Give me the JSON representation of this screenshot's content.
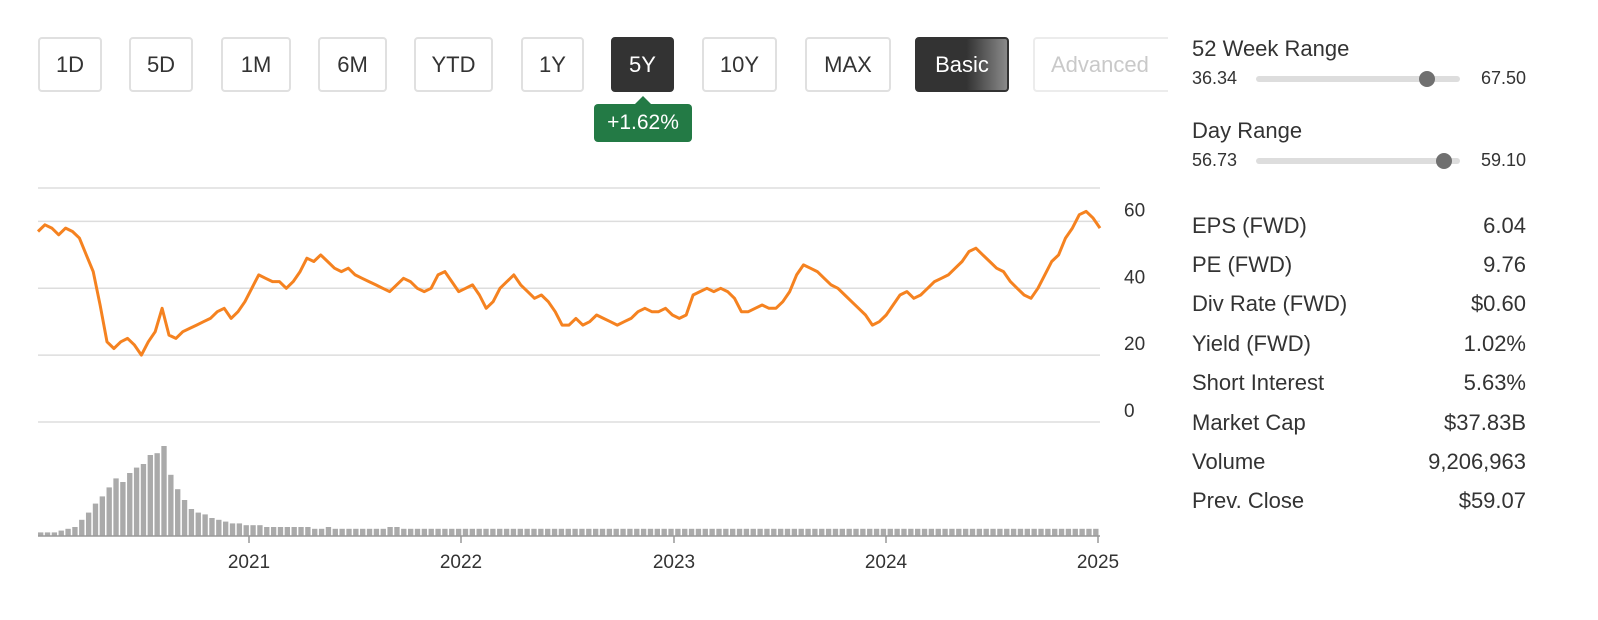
{
  "periods": [
    {
      "label": "1D",
      "active": false
    },
    {
      "label": "5D",
      "active": false
    },
    {
      "label": "1M",
      "active": false
    },
    {
      "label": "6M",
      "active": false
    },
    {
      "label": "YTD",
      "active": false
    },
    {
      "label": "1Y",
      "active": false
    },
    {
      "label": "5Y",
      "active": true
    },
    {
      "label": "10Y",
      "active": false
    },
    {
      "label": "MAX",
      "active": false
    }
  ],
  "mode": {
    "basic_label": "Basic",
    "advanced_label": "Advanced"
  },
  "change_badge": "+1.62%",
  "colors": {
    "price_line": "#f58220",
    "volume": "#aaaaaa",
    "gain_badge": "#237a45",
    "grid": "#dddddd"
  },
  "chart_data": {
    "type": "line",
    "x_tick_labels": [
      "2021",
      "2022",
      "2023",
      "2024",
      "2025"
    ],
    "y_tick_labels": [
      "60",
      "40",
      "20",
      "0"
    ],
    "ylim": [
      0,
      70
    ],
    "grid": true,
    "series": [
      {
        "values": [
          57,
          59,
          58,
          56,
          58,
          57,
          55,
          50,
          45,
          35,
          24,
          22,
          24,
          25,
          23,
          20,
          24,
          27,
          34,
          26,
          25,
          27,
          28,
          29,
          30,
          31,
          33,
          34,
          31,
          33,
          36,
          40,
          44,
          43,
          42,
          42,
          40,
          42,
          45,
          49,
          48,
          50,
          48,
          46,
          45,
          46,
          44,
          43,
          42,
          41,
          40,
          39,
          41,
          43,
          42,
          40,
          39,
          40,
          44,
          45,
          42,
          39,
          40,
          41,
          38,
          34,
          36,
          40,
          42,
          44,
          41,
          39,
          37,
          38,
          36,
          33,
          29,
          29,
          31,
          29,
          30,
          32,
          31,
          30,
          29,
          30,
          31,
          33,
          34,
          33,
          33,
          34,
          32,
          31,
          32,
          38,
          39,
          40,
          39,
          40,
          39,
          37,
          33,
          33,
          34,
          35,
          34,
          34,
          36,
          39,
          44,
          47,
          46,
          45,
          43,
          41,
          40,
          38,
          36,
          34,
          32,
          29,
          30,
          32,
          35,
          38,
          39,
          37,
          38,
          40,
          42,
          43,
          44,
          46,
          48,
          51,
          52,
          50,
          48,
          46,
          45,
          42,
          40,
          38,
          37,
          40,
          44,
          48,
          50,
          55,
          58,
          62,
          63,
          61,
          58
        ]
      }
    ],
    "volume": {
      "values": [
        2,
        2,
        2,
        3,
        4,
        5,
        9,
        13,
        18,
        22,
        27,
        32,
        30,
        35,
        38,
        40,
        45,
        46,
        50,
        34,
        26,
        20,
        15,
        13,
        12,
        10,
        9,
        8,
        7,
        7,
        6,
        6,
        6,
        5,
        5,
        5,
        5,
        5,
        5,
        5,
        4,
        4,
        5,
        4,
        4,
        4,
        4,
        4,
        4,
        4,
        4,
        5,
        5,
        4,
        4,
        4,
        4,
        4,
        4,
        4,
        4,
        4,
        4,
        4,
        4,
        4,
        4,
        4,
        4,
        4,
        4,
        4,
        4,
        4,
        4,
        4,
        4,
        4,
        4,
        4,
        4,
        4,
        4,
        4,
        4,
        4,
        4,
        4,
        4,
        4,
        4,
        4,
        4,
        4,
        4,
        4,
        4,
        4,
        4,
        4,
        4,
        4,
        4,
        4,
        4,
        4,
        4,
        4,
        4,
        4,
        4,
        4,
        4,
        4,
        4,
        4,
        4,
        4,
        4,
        4,
        4,
        4,
        4,
        4,
        4,
        4,
        4,
        4,
        4,
        4,
        4,
        4,
        4,
        4,
        4,
        4,
        4,
        4,
        4,
        4,
        4,
        4,
        4,
        4,
        4,
        4,
        4,
        4,
        4,
        4,
        4,
        4,
        4,
        4,
        4
      ]
    }
  },
  "stats": {
    "week52": {
      "title": "52 Week Range",
      "low": "36.34",
      "high": "67.50",
      "position": 0.84
    },
    "day": {
      "title": "Day Range",
      "low": "56.73",
      "high": "59.10",
      "position": 0.92
    },
    "rows": [
      {
        "label": "EPS (FWD)",
        "value": "6.04"
      },
      {
        "label": "PE (FWD)",
        "value": "9.76"
      },
      {
        "label": "Div Rate (FWD)",
        "value": "$0.60"
      },
      {
        "label": "Yield (FWD)",
        "value": "1.02%"
      },
      {
        "label": "Short Interest",
        "value": "5.63%"
      },
      {
        "label": "Market Cap",
        "value": "$37.83B"
      },
      {
        "label": "Volume",
        "value": "9,206,963"
      },
      {
        "label": "Prev. Close",
        "value": "$59.07"
      }
    ]
  }
}
